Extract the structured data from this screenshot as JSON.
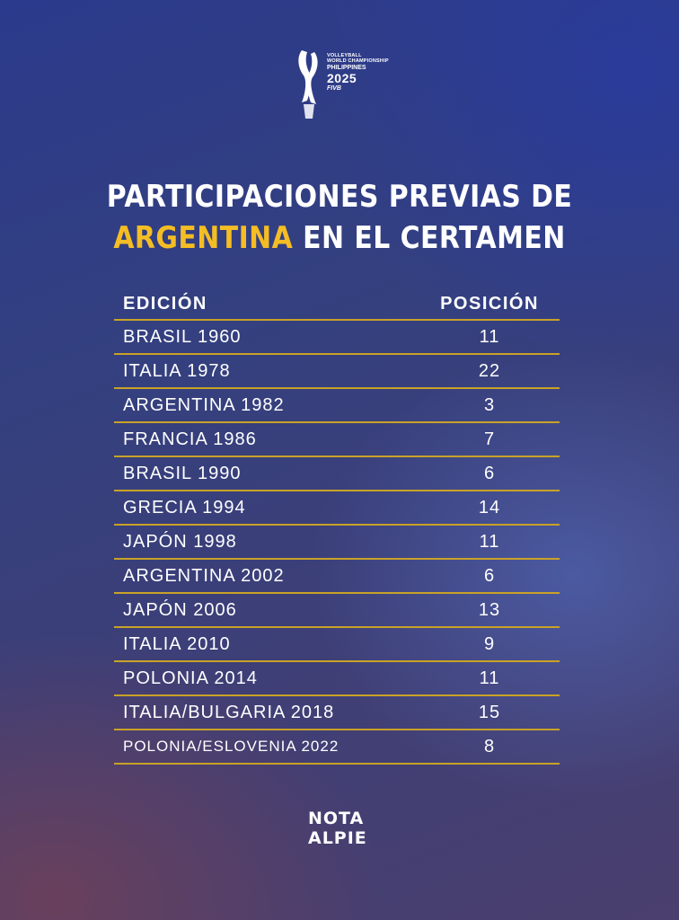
{
  "logo": {
    "line1": "VOLLEYBALL",
    "line2": "WORLD CHAMPIONSHIP",
    "line3": "PHILIPPINES",
    "line4": "2025",
    "line5": "FIVB"
  },
  "title": {
    "line1": "PARTICIPACIONES PREVIAS DE",
    "highlight": "ARGENTINA",
    "line2_rest": " EN EL CERTAMEN"
  },
  "colors": {
    "highlight": "#f5bd24",
    "divider": "#c9a227"
  },
  "table": {
    "headers": [
      "EDICIÓN",
      "POSICIÓN"
    ],
    "rows": [
      {
        "edition": "BRASIL 1960",
        "position": "11"
      },
      {
        "edition": "ITALIA 1978",
        "position": "22"
      },
      {
        "edition": "ARGENTINA 1982",
        "position": "3"
      },
      {
        "edition": "FRANCIA 1986",
        "position": "7"
      },
      {
        "edition": "BRASIL 1990",
        "position": "6"
      },
      {
        "edition": "GRECIA 1994",
        "position": "14"
      },
      {
        "edition": "JAPÓN 1998",
        "position": "11"
      },
      {
        "edition": "ARGENTINA 2002",
        "position": "6"
      },
      {
        "edition": "JAPÓN 2006",
        "position": "13"
      },
      {
        "edition": "ITALIA 2010",
        "position": "9"
      },
      {
        "edition": "POLONIA 2014",
        "position": "11"
      },
      {
        "edition": "ITALIA/BULGARIA 2018",
        "position": "15"
      },
      {
        "edition": "POLONIA/ESLOVENIA 2022",
        "position": "8"
      }
    ]
  },
  "footer_logo": {
    "line1": "NOTA",
    "line2": "ALPIE"
  }
}
